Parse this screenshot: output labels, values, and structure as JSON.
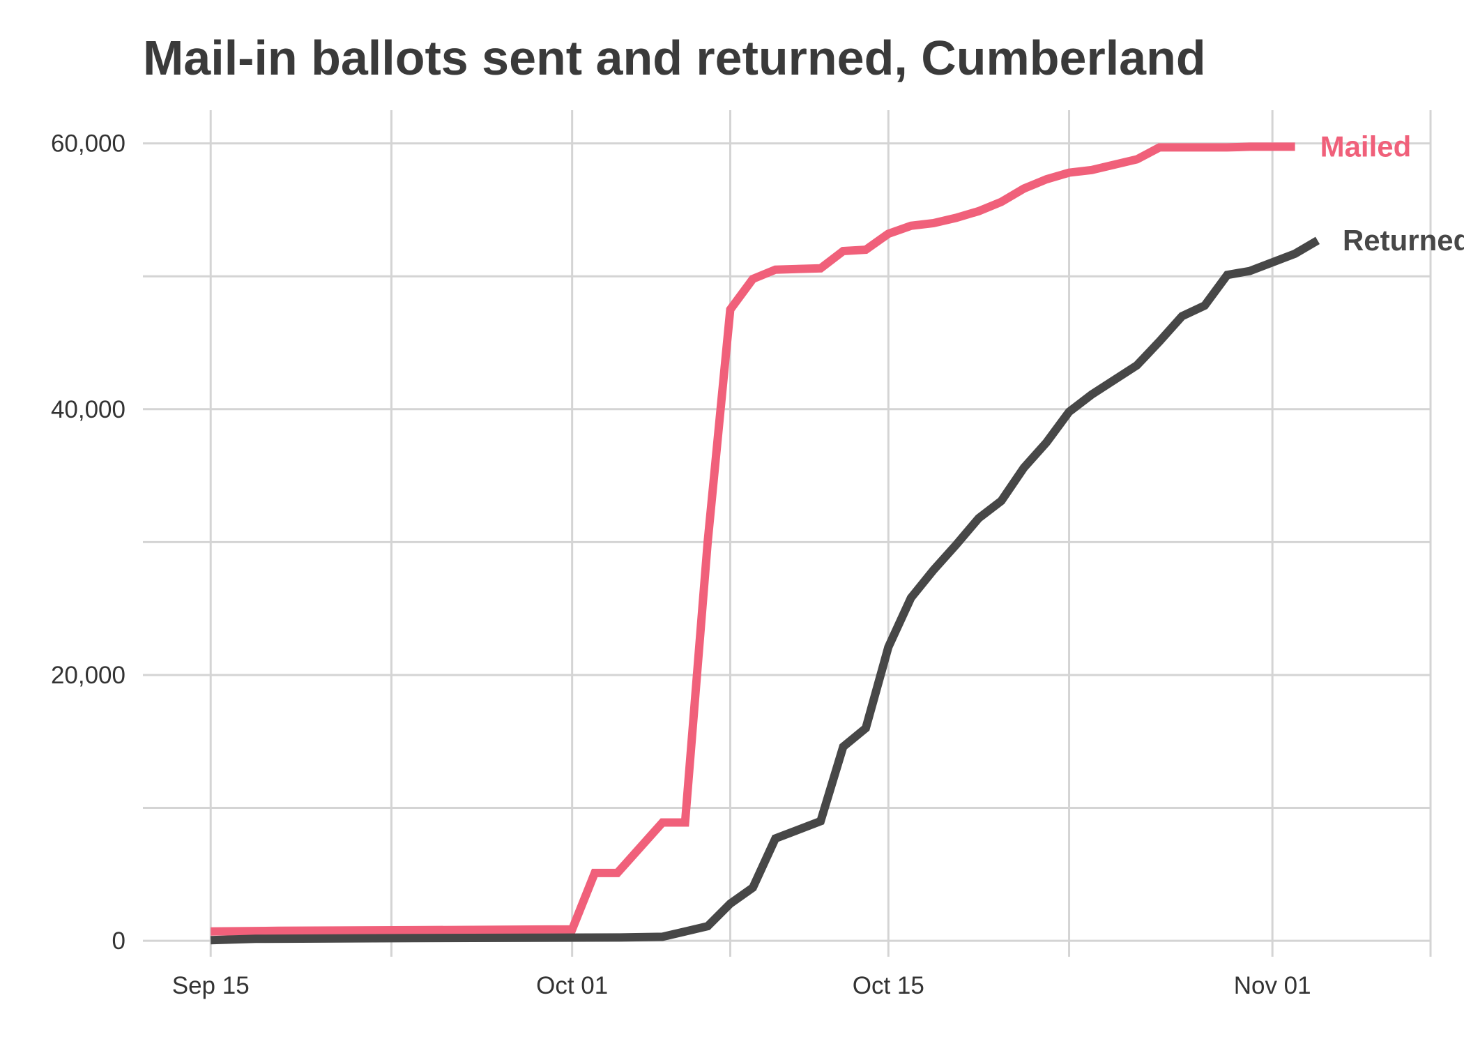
{
  "chart_data": {
    "type": "line",
    "title": "Mail-in ballots sent and returned, Cumberland",
    "xlabel": "",
    "ylabel": "",
    "x_type": "date",
    "x_range": [
      "2020-09-12",
      "2020-11-08"
    ],
    "ylim": [
      -1200,
      62500
    ],
    "grid": true,
    "legend": "direct labels at line ends",
    "x_ticks": [
      {
        "date": "2020-09-15",
        "label": "Sep 15"
      },
      {
        "date": "2020-10-01",
        "label": "Oct 01"
      },
      {
        "date": "2020-10-15",
        "label": "Oct 15"
      },
      {
        "date": "2020-11-01",
        "label": "Nov 01"
      }
    ],
    "y_ticks": [
      {
        "value": 0,
        "label": "0"
      },
      {
        "value": 20000,
        "label": "20,000"
      },
      {
        "value": 40000,
        "label": "40,000"
      },
      {
        "value": 60000,
        "label": "60,000"
      }
    ],
    "x_minor_gridlines": [
      "2020-09-23",
      "2020-10-08",
      "2020-10-23",
      "2020-11-08"
    ],
    "y_minor_gridlines": [
      10000,
      30000,
      50000
    ],
    "series": [
      {
        "name": "Mailed",
        "color": "#f0607a",
        "points": [
          [
            "2020-09-15",
            700
          ],
          [
            "2020-09-18",
            750
          ],
          [
            "2020-09-24",
            800
          ],
          [
            "2020-09-30",
            850
          ],
          [
            "2020-10-01",
            850
          ],
          [
            "2020-10-02",
            5100
          ],
          [
            "2020-10-03",
            5100
          ],
          [
            "2020-10-05",
            8900
          ],
          [
            "2020-10-06",
            8900
          ],
          [
            "2020-10-07",
            30000
          ],
          [
            "2020-10-08",
            47500
          ],
          [
            "2020-10-09",
            49800
          ],
          [
            "2020-10-10",
            50500
          ],
          [
            "2020-10-12",
            50600
          ],
          [
            "2020-10-13",
            51900
          ],
          [
            "2020-10-14",
            52000
          ],
          [
            "2020-10-15",
            53200
          ],
          [
            "2020-10-16",
            53800
          ],
          [
            "2020-10-17",
            54000
          ],
          [
            "2020-10-18",
            54400
          ],
          [
            "2020-10-19",
            54900
          ],
          [
            "2020-10-20",
            55600
          ],
          [
            "2020-10-21",
            56600
          ],
          [
            "2020-10-22",
            57300
          ],
          [
            "2020-10-23",
            57800
          ],
          [
            "2020-10-24",
            58000
          ],
          [
            "2020-10-26",
            58800
          ],
          [
            "2020-10-27",
            59700
          ],
          [
            "2020-10-30",
            59700
          ],
          [
            "2020-10-31",
            59750
          ],
          [
            "2020-11-02",
            59750
          ]
        ]
      },
      {
        "name": "Returned",
        "color": "#474747",
        "points": [
          [
            "2020-09-15",
            50
          ],
          [
            "2020-09-17",
            150
          ],
          [
            "2020-09-24",
            200
          ],
          [
            "2020-10-03",
            250
          ],
          [
            "2020-10-05",
            300
          ],
          [
            "2020-10-06",
            700
          ],
          [
            "2020-10-07",
            1100
          ],
          [
            "2020-10-08",
            2800
          ],
          [
            "2020-10-09",
            4000
          ],
          [
            "2020-10-10",
            7700
          ],
          [
            "2020-10-12",
            9000
          ],
          [
            "2020-10-13",
            14600
          ],
          [
            "2020-10-14",
            16000
          ],
          [
            "2020-10-15",
            22100
          ],
          [
            "2020-10-16",
            25800
          ],
          [
            "2020-10-17",
            27900
          ],
          [
            "2020-10-18",
            29800
          ],
          [
            "2020-10-19",
            31800
          ],
          [
            "2020-10-20",
            33100
          ],
          [
            "2020-10-21",
            35600
          ],
          [
            "2020-10-22",
            37500
          ],
          [
            "2020-10-23",
            39800
          ],
          [
            "2020-10-24",
            41100
          ],
          [
            "2020-10-26",
            43300
          ],
          [
            "2020-10-27",
            45100
          ],
          [
            "2020-10-28",
            47000
          ],
          [
            "2020-10-29",
            47800
          ],
          [
            "2020-10-30",
            50100
          ],
          [
            "2020-10-31",
            50400
          ],
          [
            "2020-11-02",
            51700
          ],
          [
            "2020-11-03",
            52700
          ]
        ]
      }
    ]
  }
}
